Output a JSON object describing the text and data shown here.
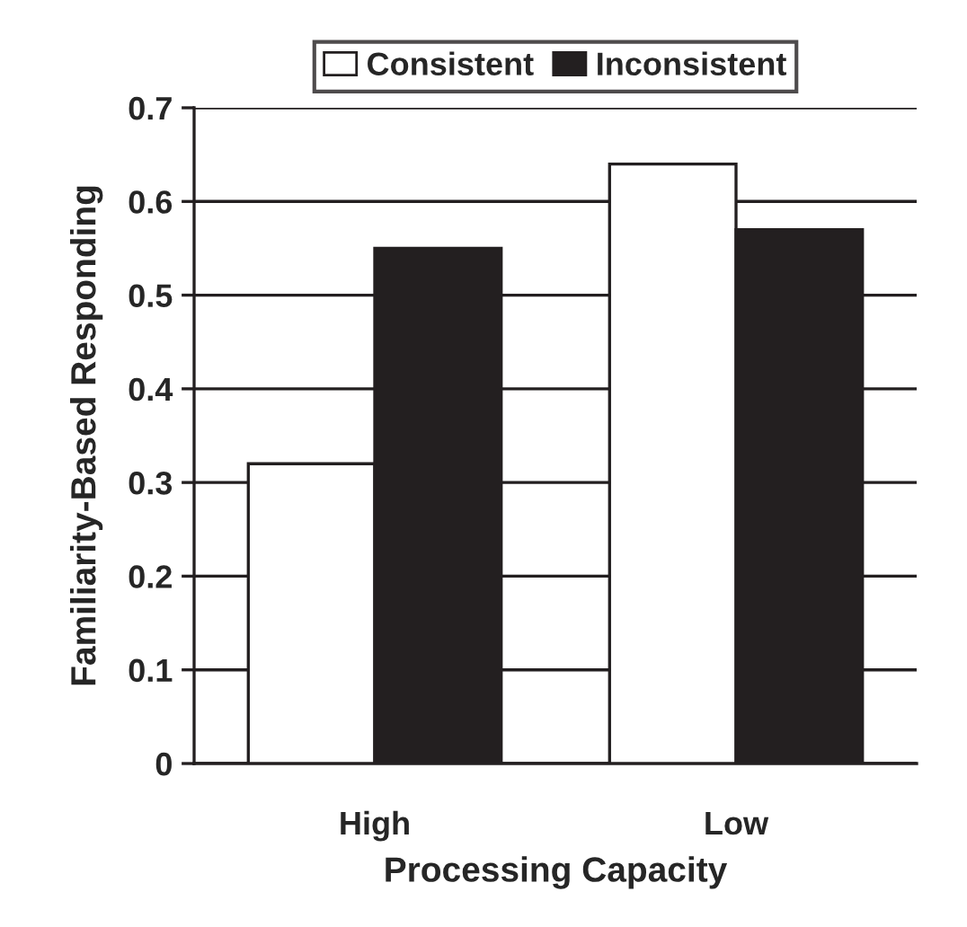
{
  "chart_data": {
    "type": "bar",
    "xlabel": "Processing Capacity",
    "ylabel": "Familiarity-Based Responding",
    "categories": [
      "High",
      "Low"
    ],
    "series": [
      {
        "name": "Consistent",
        "color": "#ffffff",
        "values": [
          0.32,
          0.64
        ]
      },
      {
        "name": "Inconsistent",
        "color": "#231f20",
        "values": [
          0.55,
          0.57
        ]
      }
    ],
    "ylim": [
      0,
      0.7
    ],
    "yticks": [
      {
        "value": 0,
        "label": "0"
      },
      0.1,
      0.2,
      0.3,
      0.4,
      0.5,
      0.6,
      0.7
    ],
    "grid": "y",
    "legend": "top"
  }
}
